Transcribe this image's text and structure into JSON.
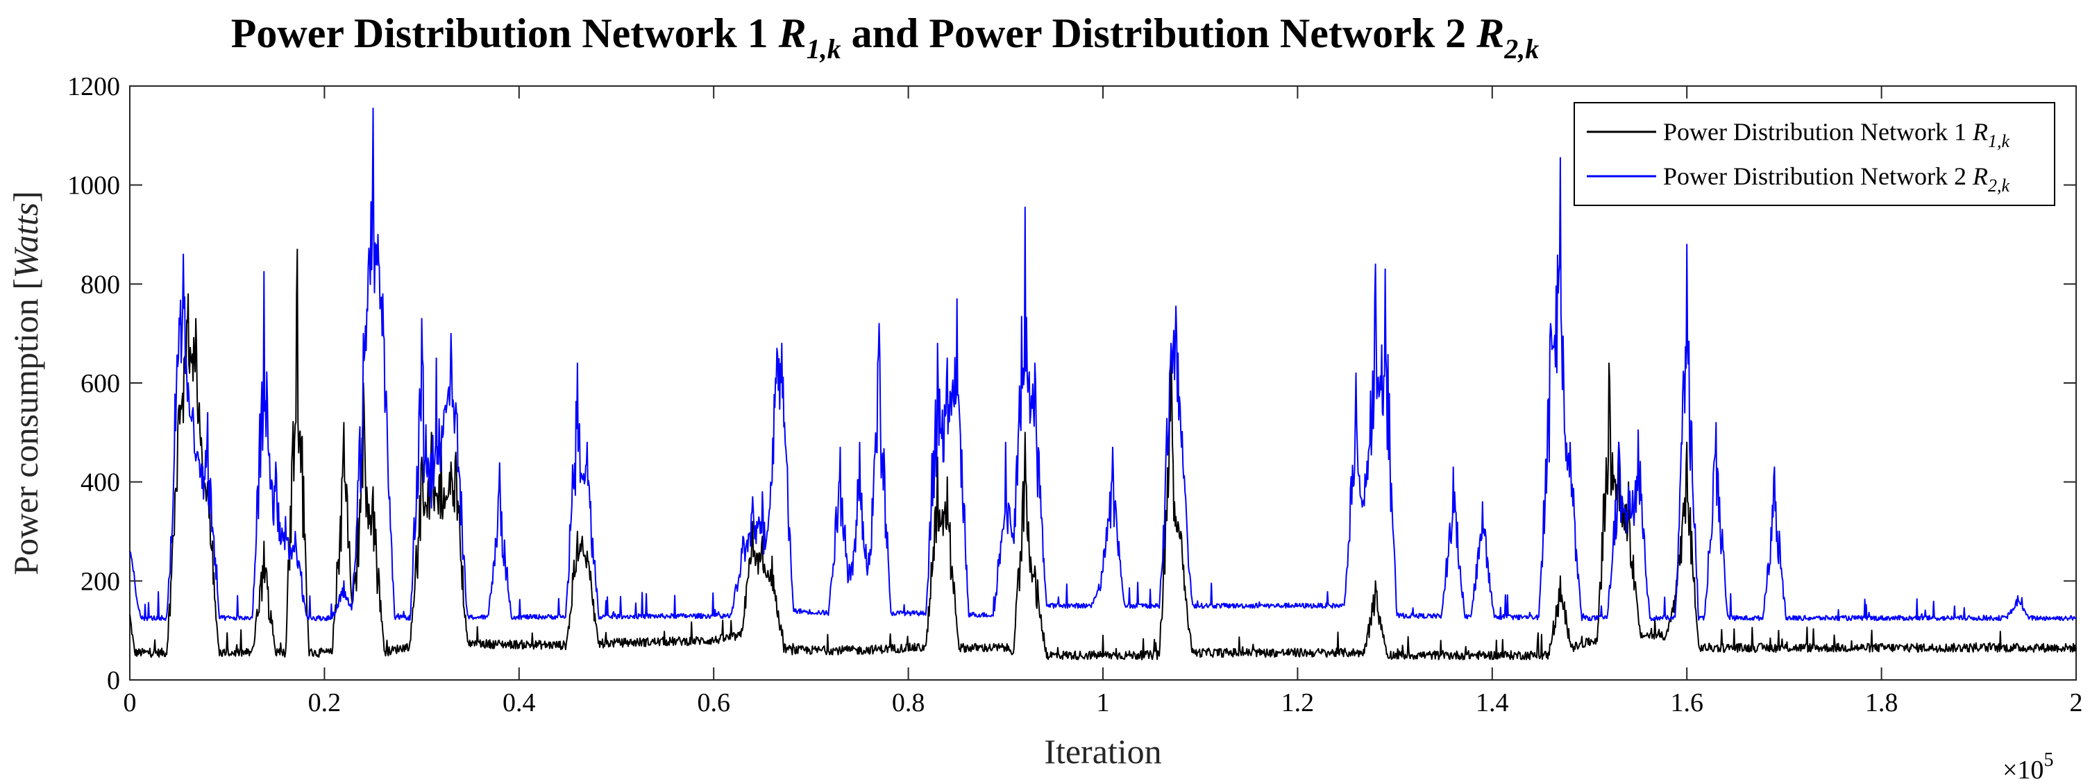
{
  "chart_data": {
    "type": "line",
    "title": {
      "text_before": "Power Distribution Network 1 ",
      "symbol1": "R",
      "sub1": "1,k",
      "text_middle": " and Power Distribution Network 2 ",
      "symbol2": "R",
      "sub2": "2,k"
    },
    "xlabel": "Iteration",
    "x_exponent_label": "×10",
    "x_exponent_power": "5",
    "ylabel": {
      "text": "Power consumption [",
      "unit": "Watts",
      "close": "]"
    },
    "xlim": [
      0,
      2
    ],
    "ylim": [
      0,
      1200
    ],
    "x_ticks": [
      "0",
      "0.2",
      "0.4",
      "0.6",
      "0.8",
      "1",
      "1.2",
      "1.4",
      "1.6",
      "1.8",
      "2"
    ],
    "y_ticks": [
      "0",
      "200",
      "400",
      "600",
      "800",
      "1000",
      "1200"
    ],
    "grid": false,
    "legend_position": "top-right",
    "legend": [
      {
        "text": "Power Distribution Network 1 ",
        "symbol": "R",
        "sub": "1,k",
        "color": "#000000"
      },
      {
        "text": "Power Distribution Network 2 ",
        "symbol": "R",
        "sub": "2,k",
        "color": "#0000ff"
      }
    ],
    "series": [
      {
        "name": "Power Distribution Network 1 R1,k",
        "color": "#000000",
        "baseline": [
          [
            0.0,
            130
          ],
          [
            0.005,
            55
          ],
          [
            0.05,
            55
          ],
          [
            0.09,
            55
          ],
          [
            0.19,
            55
          ],
          [
            0.23,
            55
          ],
          [
            0.26,
            55
          ],
          [
            0.3,
            75
          ],
          [
            0.45,
            70
          ],
          [
            0.5,
            75
          ],
          [
            0.6,
            80
          ],
          [
            0.63,
            90
          ],
          [
            0.68,
            60
          ],
          [
            0.75,
            60
          ],
          [
            0.8,
            65
          ],
          [
            0.9,
            65
          ],
          [
            0.92,
            50
          ],
          [
            1.07,
            50
          ],
          [
            1.09,
            55
          ],
          [
            1.28,
            55
          ],
          [
            1.3,
            50
          ],
          [
            1.46,
            50
          ],
          [
            1.52,
            90
          ],
          [
            1.6,
            90
          ],
          [
            1.61,
            65
          ],
          [
            2.0,
            65
          ]
        ],
        "peaks": [
          [
            0.05,
            545
          ],
          [
            0.055,
            520
          ],
          [
            0.06,
            780
          ],
          [
            0.065,
            600
          ],
          [
            0.068,
            730
          ],
          [
            0.072,
            500
          ],
          [
            0.075,
            400
          ],
          [
            0.08,
            400
          ],
          [
            0.138,
            280
          ],
          [
            0.172,
            870
          ],
          [
            0.22,
            520
          ],
          [
            0.24,
            600
          ],
          [
            0.25,
            390
          ],
          [
            0.3,
            450
          ],
          [
            0.31,
            500
          ],
          [
            0.32,
            480
          ],
          [
            0.33,
            440
          ],
          [
            0.335,
            460
          ],
          [
            0.46,
            300
          ],
          [
            0.465,
            290
          ],
          [
            0.47,
            260
          ],
          [
            0.64,
            320
          ],
          [
            0.65,
            290
          ],
          [
            0.66,
            250
          ],
          [
            0.83,
            450
          ],
          [
            0.84,
            410
          ],
          [
            0.92,
            500
          ],
          [
            0.93,
            230
          ],
          [
            1.07,
            650
          ],
          [
            1.075,
            330
          ],
          [
            1.08,
            300
          ],
          [
            1.28,
            200
          ],
          [
            1.47,
            210
          ],
          [
            1.52,
            640
          ],
          [
            1.53,
            480
          ],
          [
            1.54,
            400
          ],
          [
            1.59,
            190
          ],
          [
            1.6,
            470
          ]
        ]
      },
      {
        "name": "Power Distribution Network 2 R2,k",
        "color": "#0000ff",
        "baseline": [
          [
            0.0,
            260
          ],
          [
            0.005,
            125
          ],
          [
            0.2,
            125
          ],
          [
            0.65,
            130
          ],
          [
            0.67,
            130
          ],
          [
            0.68,
            140
          ],
          [
            0.72,
            135
          ],
          [
            0.8,
            135
          ],
          [
            0.91,
            130
          ],
          [
            0.92,
            150
          ],
          [
            1.0,
            150
          ],
          [
            1.02,
            150
          ],
          [
            1.07,
            150
          ],
          [
            1.08,
            150
          ],
          [
            1.26,
            150
          ],
          [
            1.28,
            150
          ],
          [
            1.3,
            130
          ],
          [
            1.5,
            125
          ],
          [
            2.0,
            125
          ]
        ],
        "peaks": [
          [
            0.0,
            260
          ],
          [
            0.05,
            650
          ],
          [
            0.055,
            860
          ],
          [
            0.06,
            600
          ],
          [
            0.065,
            550
          ],
          [
            0.07,
            460
          ],
          [
            0.08,
            540
          ],
          [
            0.138,
            825
          ],
          [
            0.15,
            440
          ],
          [
            0.16,
            330
          ],
          [
            0.17,
            300
          ],
          [
            0.22,
            200
          ],
          [
            0.24,
            700
          ],
          [
            0.25,
            1155
          ],
          [
            0.255,
            900
          ],
          [
            0.26,
            780
          ],
          [
            0.3,
            730
          ],
          [
            0.315,
            650
          ],
          [
            0.325,
            540
          ],
          [
            0.33,
            700
          ],
          [
            0.335,
            560
          ],
          [
            0.38,
            410
          ],
          [
            0.46,
            640
          ],
          [
            0.47,
            480
          ],
          [
            0.63,
            290
          ],
          [
            0.64,
            370
          ],
          [
            0.65,
            380
          ],
          [
            0.665,
            670
          ],
          [
            0.67,
            680
          ],
          [
            0.73,
            470
          ],
          [
            0.75,
            480
          ],
          [
            0.77,
            720
          ],
          [
            0.83,
            680
          ],
          [
            0.84,
            650
          ],
          [
            0.85,
            770
          ],
          [
            0.9,
            480
          ],
          [
            0.91,
            310
          ],
          [
            0.92,
            955
          ],
          [
            0.93,
            640
          ],
          [
            1.0,
            220
          ],
          [
            1.01,
            470
          ],
          [
            1.07,
            680
          ],
          [
            1.075,
            755
          ],
          [
            1.08,
            500
          ],
          [
            1.26,
            620
          ],
          [
            1.27,
            390
          ],
          [
            1.28,
            840
          ],
          [
            1.29,
            830
          ],
          [
            1.36,
            430
          ],
          [
            1.39,
            360
          ],
          [
            1.46,
            720
          ],
          [
            1.47,
            1055
          ],
          [
            1.48,
            480
          ],
          [
            1.53,
            480
          ],
          [
            1.54,
            390
          ],
          [
            1.55,
            505
          ],
          [
            1.6,
            880
          ],
          [
            1.63,
            520
          ],
          [
            1.69,
            430
          ],
          [
            1.94,
            170
          ]
        ]
      }
    ]
  }
}
